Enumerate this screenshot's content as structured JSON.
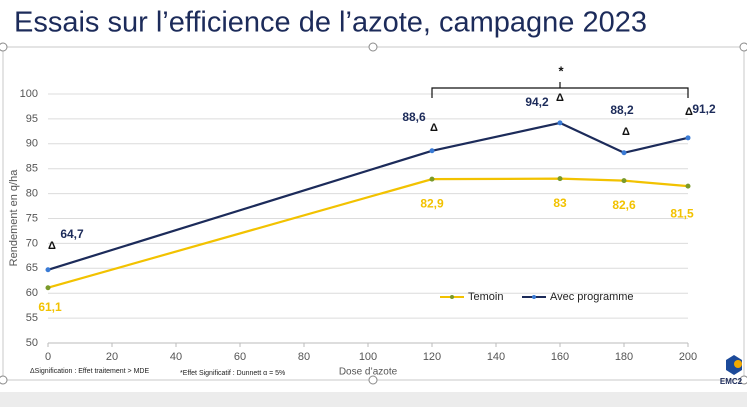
{
  "title": "Essais sur l’efficience de l’azote, campagne 2023",
  "logo": "EMC2",
  "chart_data": {
    "type": "line",
    "x": [
      0,
      120,
      160,
      180,
      200
    ],
    "series": [
      {
        "name": "Temoin",
        "color": "#f2c200",
        "values": [
          61.1,
          82.9,
          83,
          82.6,
          81.5
        ],
        "value_labels": [
          "61,1",
          "82,9",
          "83",
          "82,6",
          "81,5"
        ]
      },
      {
        "name": "Avec programme",
        "color": "#1c2b5a",
        "values": [
          64.7,
          88.6,
          94.2,
          88.2,
          91.2
        ],
        "value_labels": [
          "64,7",
          "88,6",
          "94,2",
          "88,2",
          "91,2"
        ]
      }
    ],
    "xlim": [
      0,
      200
    ],
    "xticks": [
      0,
      20,
      40,
      60,
      80,
      100,
      120,
      140,
      160,
      180,
      200
    ],
    "ylim": [
      50,
      100
    ],
    "yticks": [
      50,
      55,
      60,
      65,
      70,
      75,
      80,
      85,
      90,
      95,
      100
    ],
    "xlabel": "Dose d’azote",
    "ylabel": "Rendement en q/ha",
    "grid": true,
    "legend": "bottom-right",
    "delta_marker": "Δ",
    "significance_marker": "*",
    "footnotes": [
      "ΔSignification : Effet traitement > MDE",
      "*Effet Significatif : Dunnett α = 5%"
    ]
  }
}
